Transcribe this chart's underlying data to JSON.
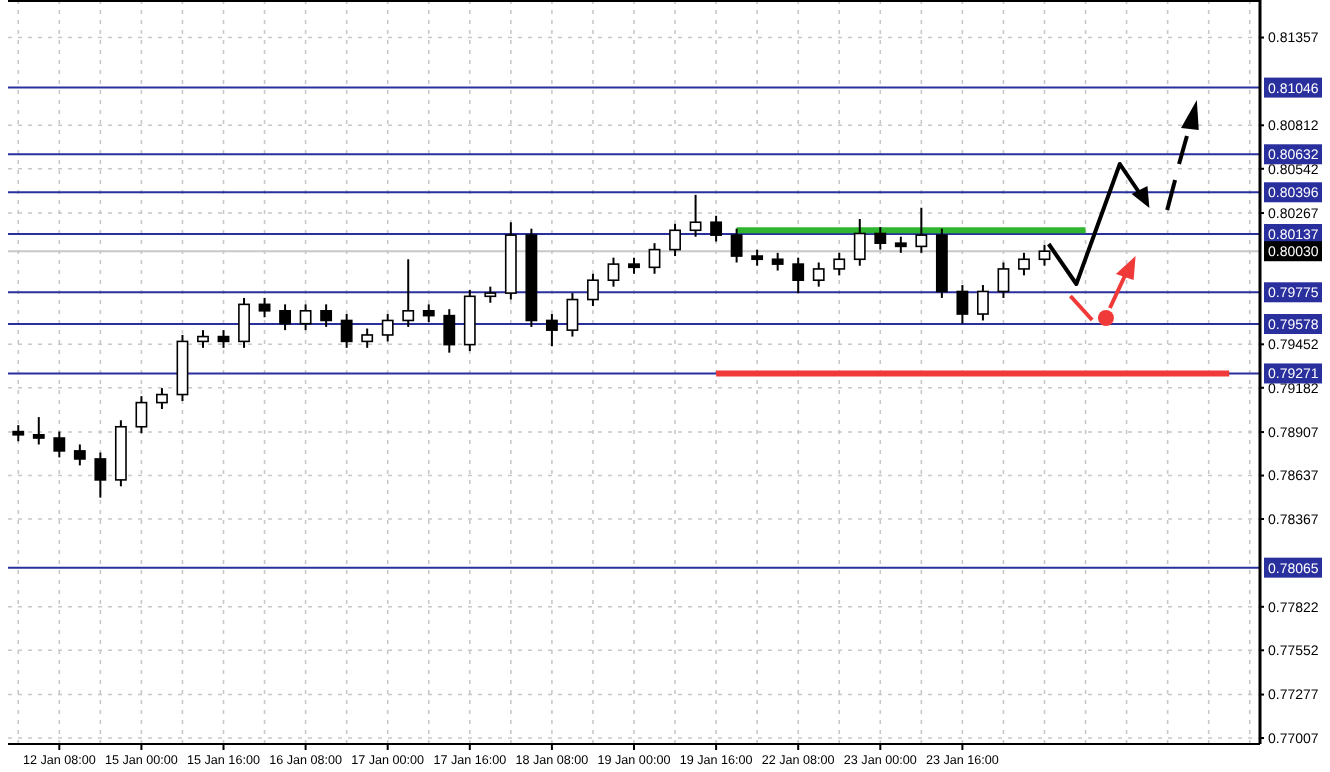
{
  "chart_data": {
    "type": "candlestick",
    "color": "#000000",
    "categories": [
      null,
      null,
      "12 Jan 08:00",
      null,
      null,
      null,
      "15 Jan 00:00",
      null,
      null,
      null,
      "15 Jan 16:00",
      null,
      null,
      null,
      "16 Jan 08:00",
      null,
      null,
      null,
      "17 Jan 00:00",
      null,
      null,
      null,
      "17 Jan 16:00",
      null,
      null,
      null,
      "18 Jan 08:00",
      null,
      null,
      null,
      "19 Jan 00:00",
      null,
      null,
      null,
      "19 Jan 16:00",
      null,
      null,
      null,
      "22 Jan 08:00",
      null,
      null,
      null,
      "23 Jan 00:00",
      null,
      null,
      null,
      "23 Jan 16:00",
      null,
      null,
      null,
      null,
      null,
      null,
      null,
      null,
      null,
      null,
      null,
      null,
      null,
      null
    ],
    "ohlc": [
      [
        0.7891,
        0.7895,
        0.7885,
        0.7889
      ],
      [
        0.7889,
        0.79,
        0.7883,
        0.7887
      ],
      [
        0.7887,
        0.7891,
        0.7875,
        0.7879
      ],
      [
        0.7879,
        0.7883,
        0.787,
        0.7874
      ],
      [
        0.7874,
        0.7878,
        0.785,
        0.7861
      ],
      [
        0.7861,
        0.7898,
        0.7857,
        0.7894
      ],
      [
        0.7894,
        0.7913,
        0.789,
        0.7909
      ],
      [
        0.7909,
        0.7918,
        0.7905,
        0.7914
      ],
      [
        0.7914,
        0.7951,
        0.791,
        0.7947
      ],
      [
        0.7947,
        0.7954,
        0.7943,
        0.795
      ],
      [
        0.795,
        0.7954,
        0.7943,
        0.7947
      ],
      [
        0.7947,
        0.7974,
        0.7943,
        0.797
      ],
      [
        0.797,
        0.7974,
        0.7962,
        0.7966
      ],
      [
        0.7966,
        0.797,
        0.7954,
        0.7958
      ],
      [
        0.7958,
        0.797,
        0.7954,
        0.7966
      ],
      [
        0.7966,
        0.797,
        0.7956,
        0.796
      ],
      [
        0.796,
        0.7964,
        0.7943,
        0.7947
      ],
      [
        0.7947,
        0.7955,
        0.7943,
        0.7951
      ],
      [
        0.7951,
        0.7964,
        0.7947,
        0.796
      ],
      [
        0.796,
        0.7998,
        0.7956,
        0.7966
      ],
      [
        0.7966,
        0.797,
        0.7959,
        0.7963
      ],
      [
        0.7963,
        0.7967,
        0.794,
        0.7945
      ],
      [
        0.7945,
        0.7979,
        0.7941,
        0.7975
      ],
      [
        0.7975,
        0.7981,
        0.7971,
        0.7977
      ],
      [
        0.7977,
        0.8021,
        0.7973,
        0.8013
      ],
      [
        0.8013,
        0.8017,
        0.7956,
        0.796
      ],
      [
        0.796,
        0.7964,
        0.7944,
        0.7954
      ],
      [
        0.7954,
        0.7977,
        0.795,
        0.7973
      ],
      [
        0.7973,
        0.7989,
        0.7969,
        0.7985
      ],
      [
        0.7985,
        0.7999,
        0.7981,
        0.7995
      ],
      [
        0.7995,
        0.7999,
        0.7989,
        0.7993
      ],
      [
        0.7993,
        0.8008,
        0.7989,
        0.8004
      ],
      [
        0.8004,
        0.802,
        0.8,
        0.8016
      ],
      [
        0.8016,
        0.8038,
        0.8012,
        0.8021
      ],
      [
        0.8021,
        0.8025,
        0.8009,
        0.8013
      ],
      [
        0.8013,
        0.8017,
        0.7996,
        0.8
      ],
      [
        0.8,
        0.8004,
        0.7994,
        0.7998
      ],
      [
        0.7998,
        0.8002,
        0.7991,
        0.7995
      ],
      [
        0.7995,
        0.7999,
        0.7977,
        0.7985
      ],
      [
        0.7985,
        0.7996,
        0.7981,
        0.7992
      ],
      [
        0.7992,
        0.8002,
        0.7988,
        0.7998
      ],
      [
        0.7998,
        0.8023,
        0.7994,
        0.8014
      ],
      [
        0.8014,
        0.8018,
        0.8004,
        0.8008
      ],
      [
        0.8008,
        0.8012,
        0.8002,
        0.8006
      ],
      [
        0.8006,
        0.803,
        0.8002,
        0.8013
      ],
      [
        0.8013,
        0.8017,
        0.7974,
        0.7978
      ],
      [
        0.7978,
        0.7982,
        0.7958,
        0.7964
      ],
      [
        0.7964,
        0.7982,
        0.796,
        0.7978
      ],
      [
        0.7978,
        0.7996,
        0.7974,
        0.7992
      ],
      [
        0.7992,
        0.8002,
        0.7988,
        0.7998
      ],
      [
        0.7998,
        0.8007,
        0.7994,
        0.8003
      ],
      null,
      null,
      null,
      null,
      null,
      null,
      null,
      null,
      null,
      null
    ],
    "series": [
      {
        "type": "line",
        "color": "#2fb52f",
        "values": [
          null,
          null,
          null,
          null,
          null,
          null,
          null,
          null,
          null,
          null,
          null,
          null,
          null,
          null,
          null,
          null,
          null,
          null,
          null,
          null,
          null,
          null,
          null,
          null,
          null,
          null,
          null,
          null,
          null,
          null,
          null,
          null,
          null,
          null,
          null,
          0.8016,
          0.8016,
          0.8016,
          0.8016,
          0.8016,
          0.8016,
          0.8016,
          0.8016,
          0.8016,
          0.8016,
          0.8016,
          0.8016,
          0.8016,
          0.8016,
          0.8016,
          0.8016,
          0.8016,
          0.8016,
          null,
          null,
          null,
          null,
          null,
          null,
          null,
          null
        ]
      },
      {
        "type": "line",
        "color": "#f03a3a",
        "values": [
          null,
          null,
          null,
          null,
          null,
          null,
          null,
          null,
          null,
          null,
          null,
          null,
          null,
          null,
          null,
          null,
          null,
          null,
          null,
          null,
          null,
          null,
          null,
          null,
          null,
          null,
          null,
          null,
          null,
          null,
          null,
          null,
          null,
          null,
          0.7927,
          0.7927,
          0.7927,
          0.7927,
          0.7927,
          0.7927,
          0.7927,
          0.7927,
          0.7927,
          0.7927,
          0.7927,
          0.7927,
          0.7927,
          0.7927,
          0.7927,
          0.7927,
          0.7927,
          0.7927,
          0.7927,
          0.7927,
          0.7927,
          0.7927,
          0.7927,
          0.7927,
          0.7927,
          0.7927,
          null
        ]
      }
    ],
    "ylim": [
      0.7697,
      0.8159
    ],
    "yticks": [
      0.81357,
      0.80812,
      0.80542,
      0.80267,
      0.79452,
      0.79182,
      0.78907,
      0.78637,
      0.78367,
      0.77822,
      0.77552,
      0.77277,
      0.77007
    ],
    "grid": true,
    "ref_lines": [
      {
        "axis": "y",
        "value": 0.81046,
        "label": "0.81046",
        "color": "#2a2f9e"
      },
      {
        "axis": "y",
        "value": 0.80632,
        "label": "0.80632",
        "color": "#2a2f9e"
      },
      {
        "axis": "y",
        "value": 0.80396,
        "label": "0.80396",
        "color": "#2a2f9e"
      },
      {
        "axis": "y",
        "value": 0.80137,
        "label": "0.80137",
        "color": "#2a2f9e"
      },
      {
        "axis": "y",
        "value": 0.8003,
        "label": "0.80030",
        "color": "#c8c8c8"
      },
      {
        "axis": "y",
        "value": 0.79775,
        "label": "0.79775",
        "color": "#2a2f9e"
      },
      {
        "axis": "y",
        "value": 0.79578,
        "label": "0.79578",
        "color": "#2a2f9e"
      },
      {
        "axis": "y",
        "value": 0.79271,
        "label": "0.79271",
        "color": "#2a2f9e"
      },
      {
        "axis": "y",
        "value": 0.78065,
        "label": "0.78065",
        "color": "#2a2f9e"
      }
    ]
  }
}
